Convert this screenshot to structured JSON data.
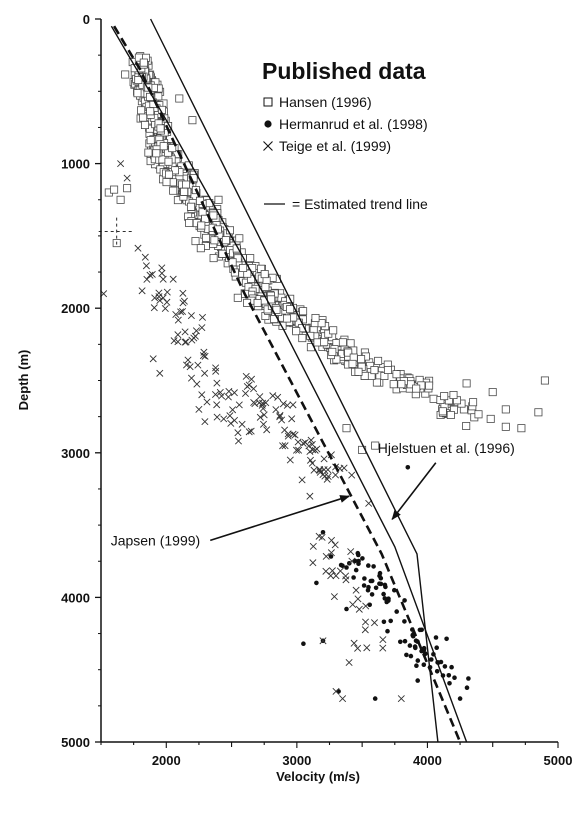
{
  "chart_data": {
    "type": "scatter",
    "title": "",
    "xlabel": "Velocity (m/s)",
    "ylabel": "Depth (m)",
    "xlim": [
      1500,
      5000
    ],
    "ylim": [
      0,
      5000
    ],
    "y_inverted": true,
    "x_ticks": [
      2000,
      3000,
      4000,
      5000
    ],
    "y_ticks": [
      0,
      1000,
      2000,
      3000,
      4000,
      5000
    ],
    "grid": false,
    "legend": {
      "title": "Published data",
      "placement": "top-right",
      "entries": [
        {
          "marker": "square",
          "label": "Hansen (1996)"
        },
        {
          "marker": "dot",
          "label": "Hermanrud et al. (1998)"
        },
        {
          "marker": "x",
          "label": "Teige et al. (1999)"
        },
        {
          "marker": "line",
          "label": "= Estimated trend line"
        }
      ]
    },
    "series": [
      {
        "name": "Hansen (1996)",
        "marker": "square",
        "clusters": [
          {
            "from": [
              1800,
              300
            ],
            "to": [
              2000,
              1000
            ],
            "spread": 70,
            "count": 260
          },
          {
            "from": [
              1950,
              900
            ],
            "to": [
              2400,
              1500
            ],
            "spread": 95,
            "count": 210
          },
          {
            "from": [
              2300,
              1400
            ],
            "to": [
              2950,
              2100
            ],
            "spread": 120,
            "count": 190
          },
          {
            "from": [
              2700,
              1900
            ],
            "to": [
              3600,
              2450
            ],
            "spread": 110,
            "count": 150
          },
          {
            "from": [
              3300,
              2300
            ],
            "to": [
              4400,
              2750
            ],
            "spread": 100,
            "count": 80
          }
        ],
        "points": [
          [
            1560,
            1200
          ],
          [
            1600,
            1180
          ],
          [
            1700,
            1170
          ],
          [
            1650,
            1250
          ],
          [
            1620,
            1550
          ],
          [
            4900,
            2500
          ],
          [
            4850,
            2720
          ],
          [
            4720,
            2830
          ],
          [
            4600,
            2700
          ],
          [
            4500,
            2580
          ],
          [
            4300,
            2520
          ],
          [
            4200,
            2600
          ],
          [
            4600,
            2820
          ],
          [
            4350,
            2650
          ],
          [
            3500,
            2980
          ],
          [
            3600,
            2950
          ],
          [
            3380,
            2830
          ],
          [
            1980,
            880
          ],
          [
            2200,
            700
          ],
          [
            2100,
            550
          ]
        ]
      },
      {
        "name": "Hermanrud et al. (1998)",
        "marker": "dot",
        "clusters": [
          {
            "from": [
              3400,
              3700
            ],
            "to": [
              4200,
              4600
            ],
            "spread": 160,
            "count": 85
          }
        ],
        "points": [
          [
            3150,
            3900
          ],
          [
            3200,
            4300
          ],
          [
            3050,
            4320
          ],
          [
            3320,
            4650
          ],
          [
            3200,
            3550
          ],
          [
            4250,
            4700
          ],
          [
            3850,
            3100
          ],
          [
            3380,
            4080
          ],
          [
            3600,
            4700
          ]
        ]
      },
      {
        "name": "Teige et al. (1999)",
        "marker": "x",
        "clusters": [
          {
            "from": [
              1850,
              1600
            ],
            "to": [
              2600,
              3000
            ],
            "spread": 140,
            "count": 70
          },
          {
            "from": [
              2600,
              2500
            ],
            "to": [
              3300,
              3200
            ],
            "spread": 150,
            "count": 70
          },
          {
            "from": [
              3200,
              3600
            ],
            "to": [
              3600,
              4400
            ],
            "spread": 140,
            "count": 30
          }
        ],
        "points": [
          [
            1520,
            1900
          ],
          [
            1650,
            1000
          ],
          [
            1700,
            1100
          ],
          [
            1950,
            2450
          ],
          [
            1900,
            2350
          ],
          [
            2250,
            2700
          ],
          [
            2650,
            2850
          ],
          [
            2950,
            3050
          ],
          [
            3200,
            3150
          ],
          [
            3100,
            3300
          ],
          [
            3350,
            4700
          ],
          [
            3800,
            4700
          ],
          [
            3300,
            4650
          ],
          [
            3400,
            4450
          ],
          [
            3550,
            3350
          ],
          [
            3300,
            3850
          ],
          [
            3200,
            4300
          ]
        ]
      }
    ],
    "trend_lines": [
      {
        "name": "Hjelstuen et al. (1996)",
        "style": "solid",
        "points": [
          [
            1880,
            0
          ],
          [
            3920,
            3700
          ],
          [
            4080,
            5000
          ]
        ]
      },
      {
        "name": "Estimated trend line",
        "style": "solid",
        "points": [
          [
            1580,
            50
          ],
          [
            2000,
            700
          ],
          [
            2900,
            2150
          ],
          [
            3750,
            3650
          ],
          [
            4300,
            5000
          ]
        ]
      },
      {
        "name": "Japsen (1999)",
        "style": "dashed",
        "points": [
          [
            1600,
            50
          ],
          [
            1800,
            350
          ],
          [
            2600,
            1900
          ],
          [
            3650,
            3700
          ],
          [
            4250,
            5000
          ]
        ]
      }
    ],
    "annotations": [
      {
        "text": "Hjelstuen et al. (1996)",
        "text_at": [
          3620,
          3000
        ],
        "arrow_to": [
          3730,
          3460
        ],
        "anchor": "start"
      },
      {
        "text": "Japsen (1999)",
        "text_at": [
          2260,
          3640
        ],
        "arrow_to": [
          3400,
          3300
        ],
        "anchor": "end"
      }
    ],
    "crosshair": {
      "x": 1620,
      "y": 1470
    }
  }
}
